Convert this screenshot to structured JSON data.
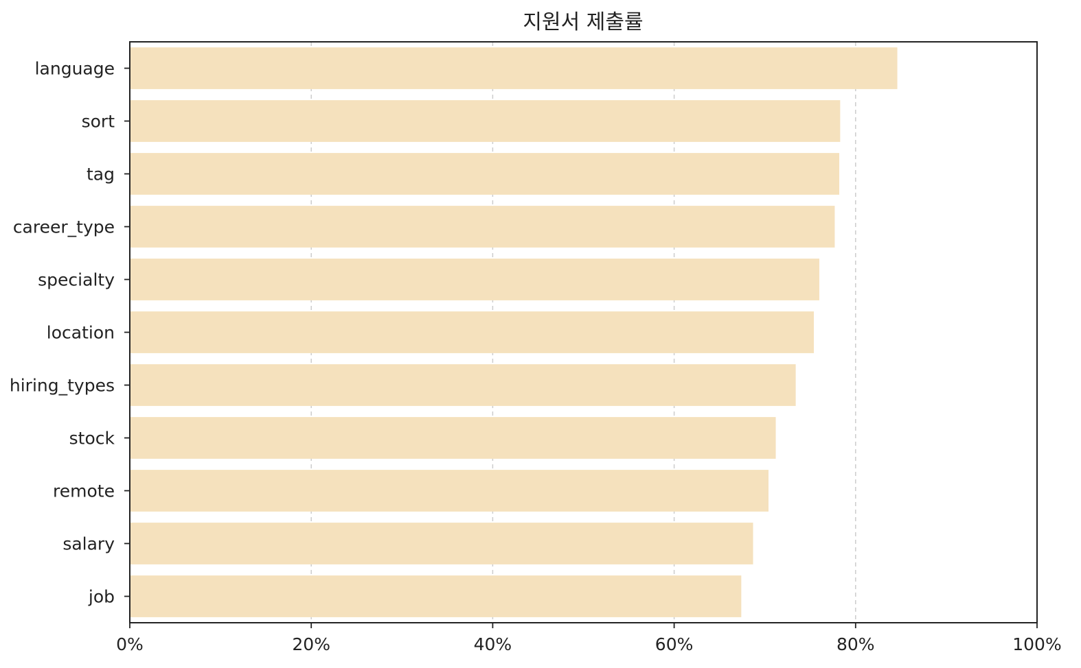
{
  "chart_data": {
    "type": "bar",
    "orientation": "horizontal",
    "title": "지원서 제출률",
    "xlabel": "",
    "ylabel": "",
    "categories": [
      "language",
      "sort",
      "tag",
      "career_type",
      "specialty",
      "location",
      "hiring_types",
      "stock",
      "remote",
      "salary",
      "job"
    ],
    "values": [
      84.6,
      78.3,
      78.2,
      77.7,
      76.0,
      75.4,
      73.4,
      71.2,
      70.4,
      68.7,
      67.4
    ],
    "xlim": [
      0,
      100
    ],
    "xticks": [
      0,
      20,
      40,
      60,
      80,
      100
    ],
    "xtick_labels": [
      "0%",
      "20%",
      "40%",
      "60%",
      "80%",
      "100%"
    ],
    "grid": "vertical dashed",
    "bar_color": "#f5e1bd",
    "gridline_color": "#cccccc"
  }
}
